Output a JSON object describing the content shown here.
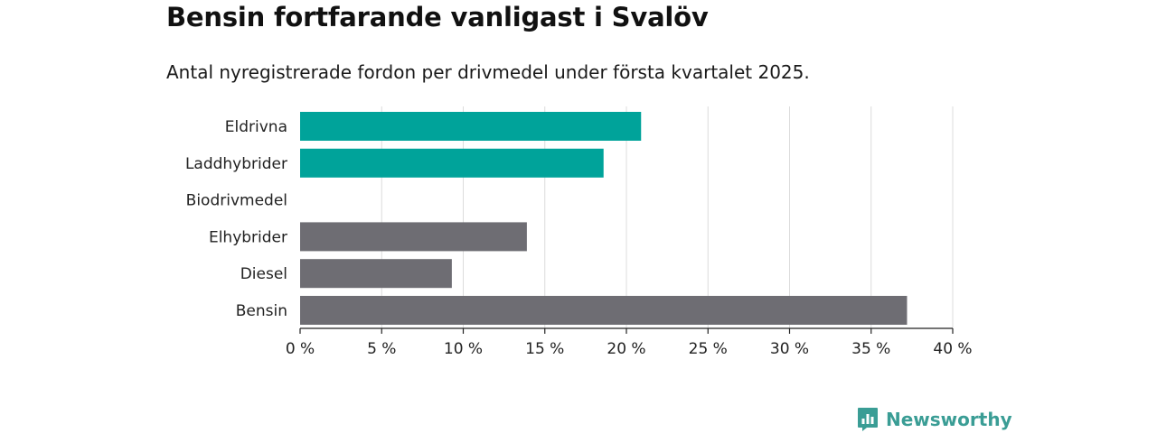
{
  "title": "Bensin fortfarande vanligast i Svalöv",
  "subtitle": "Antal nyregistrerade fordon per drivmedel under första kvartalet 2025.",
  "brand": {
    "name": "Newsworthy",
    "icon": "newsworthy-logo-icon",
    "color": "#3a9d95"
  },
  "chart_data": {
    "type": "bar",
    "orientation": "horizontal",
    "title": "Bensin fortfarande vanligast i Svalöv",
    "subtitle": "Antal nyregistrerade fordon per drivmedel under första kvartalet 2025.",
    "categories": [
      "Eldrivna",
      "Laddhybrider",
      "Biodrivmedel",
      "Elhybrider",
      "Diesel",
      "Bensin"
    ],
    "values": [
      20.9,
      18.6,
      0,
      13.9,
      9.3,
      37.2
    ],
    "colors": [
      "#00a39a",
      "#00a39a",
      "#00a39a",
      "#6e6d73",
      "#6e6d73",
      "#6e6d73"
    ],
    "xlim": [
      0,
      40
    ],
    "xticks": [
      0,
      5,
      10,
      15,
      20,
      25,
      30,
      35,
      40
    ],
    "xtick_labels": [
      "0 %",
      "5 %",
      "10 %",
      "15 %",
      "20 %",
      "25 %",
      "30 %",
      "35 %",
      "40 %"
    ],
    "grid": true,
    "xlabel": "",
    "ylabel": ""
  }
}
